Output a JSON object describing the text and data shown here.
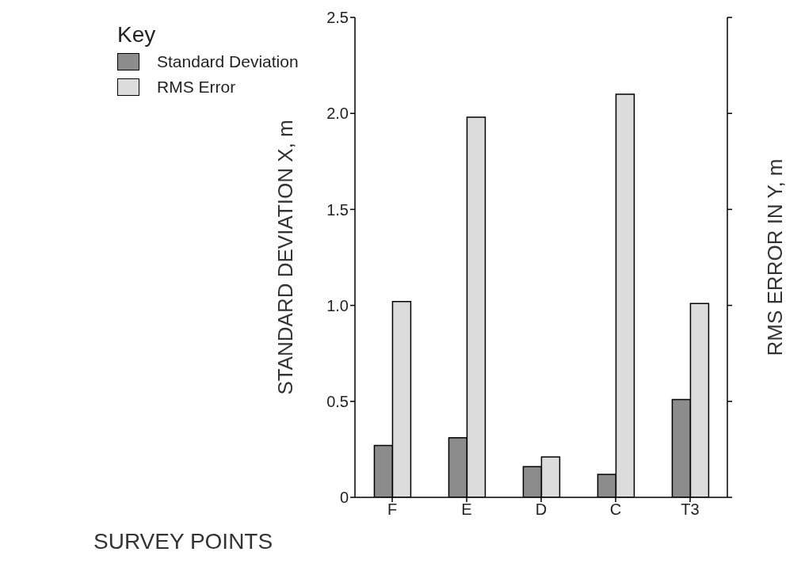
{
  "chart_data": {
    "type": "bar",
    "xlabel": "SURVEY POINTS",
    "ylabel": "STANDARD DEVIATION X, m",
    "y2label": "RMS ERROR IN Y, m",
    "legend_title": "Key",
    "legend": "top left",
    "grid": false,
    "categories": [
      "F",
      "E",
      "D",
      "C",
      "T3"
    ],
    "series": [
      {
        "name": "Standard Deviation",
        "color": "#8c8c8c",
        "values": [
          0.27,
          0.31,
          0.16,
          0.12,
          0.51
        ]
      },
      {
        "name": "RMS Error",
        "color": "#dcdcdc",
        "values": [
          1.02,
          1.98,
          0.21,
          2.1,
          1.01
        ]
      }
    ],
    "ylim": [
      0,
      2.5
    ],
    "yticks": [
      {
        "value": 0,
        "label": "0"
      },
      {
        "value": 0.5,
        "label": "0.5"
      },
      {
        "value": 1,
        "label": "1.0"
      },
      {
        "value": 1.5,
        "label": "1.5"
      },
      {
        "value": 2,
        "label": "2.0"
      },
      {
        "value": 2.5,
        "label": "2.5"
      }
    ]
  }
}
